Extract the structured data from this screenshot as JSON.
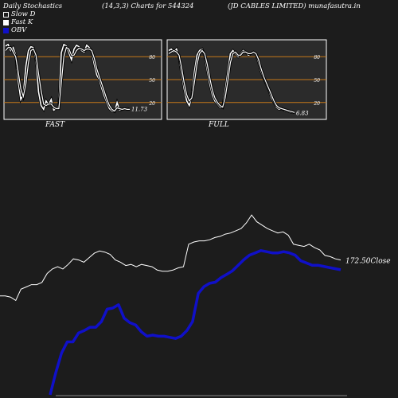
{
  "header": {
    "left": "Daily Stochastics",
    "center": "(14,3,3) Charts for 544324",
    "right": "(JD CABLES LIMITED) munafasutra.in"
  },
  "legend": [
    {
      "label": "Slow  D",
      "color": "#ffffff",
      "filled": false
    },
    {
      "label": "Fast K",
      "color": "#ffffff",
      "filled": true
    },
    {
      "label": "OBV",
      "color": "#1010c8",
      "filled": true
    }
  ],
  "colors": {
    "background": "#1c1c1c",
    "panel": "#2b2b2b",
    "gridline": "#c87a1a",
    "obv": "#1010c8",
    "price": "#ffffff"
  },
  "chart_data": [
    {
      "type": "line",
      "panel_label": "FAST",
      "last_value_label": "11.73",
      "ylim": [
        0,
        100
      ],
      "y_ticks": [
        20,
        50,
        80
      ],
      "series": [
        {
          "name": "Fast K",
          "values": [
            94,
            96,
            88,
            92,
            82,
            48,
            24,
            30,
            68,
            88,
            93,
            92,
            76,
            34,
            16,
            11,
            22,
            17,
            24,
            10,
            12,
            15,
            85,
            96,
            94,
            85,
            76,
            90,
            95,
            93,
            88,
            86,
            95,
            92,
            87,
            70,
            56,
            50,
            38,
            28,
            20,
            12,
            9,
            8,
            20,
            10,
            11,
            12,
            11,
            12
          ]
        },
        {
          "name": "Slow  D",
          "values": [
            88,
            92,
            92,
            86,
            80,
            60,
            38,
            28,
            44,
            72,
            88,
            90,
            82,
            58,
            36,
            18,
            16,
            18,
            18,
            14,
            12,
            12,
            45,
            80,
            92,
            90,
            82,
            82,
            88,
            91,
            90,
            88,
            90,
            90,
            88,
            78,
            64,
            54,
            44,
            34,
            24,
            16,
            11,
            9,
            13,
            12,
            11,
            12,
            11,
            11
          ]
        }
      ]
    },
    {
      "type": "line",
      "panel_label": "FULL",
      "last_value_label": "6.83",
      "ylim": [
        0,
        100
      ],
      "y_ticks": [
        20,
        50,
        80
      ],
      "series": [
        {
          "name": "Fast K",
          "values": [
            88,
            90,
            86,
            90,
            80,
            58,
            38,
            22,
            16,
            28,
            60,
            82,
            88,
            90,
            82,
            62,
            44,
            30,
            22,
            18,
            14,
            13,
            35,
            60,
            84,
            88,
            84,
            80,
            84,
            88,
            86,
            82,
            84,
            86,
            84,
            72,
            60,
            52,
            44,
            36,
            26,
            20,
            14,
            11,
            12,
            10,
            9,
            8,
            7,
            7
          ]
        },
        {
          "name": "Slow  D",
          "values": [
            84,
            86,
            88,
            86,
            82,
            66,
            46,
            30,
            22,
            26,
            46,
            70,
            84,
            88,
            84,
            70,
            52,
            36,
            26,
            20,
            16,
            14,
            26,
            48,
            72,
            84,
            86,
            82,
            82,
            86,
            86,
            84,
            84,
            86,
            84,
            76,
            64,
            54,
            46,
            38,
            30,
            22,
            16,
            13,
            12,
            11,
            10,
            9,
            8,
            7
          ]
        }
      ]
    },
    {
      "type": "line",
      "last_value_label": "172.50",
      "last_value_suffix": "Close",
      "series": [
        {
          "name": "Close",
          "values": [
            140,
            140,
            139,
            136,
            146,
            148,
            150,
            150,
            152,
            160,
            164,
            166,
            164,
            168,
            173,
            172,
            170,
            174,
            178,
            180,
            179,
            177,
            172,
            170,
            167,
            168,
            166,
            168,
            167,
            166,
            163,
            162,
            162,
            163,
            165,
            166,
            186,
            188,
            189,
            189,
            190,
            192,
            193,
            195,
            196,
            198,
            200,
            205,
            212,
            206,
            203,
            200,
            198,
            196,
            197,
            194,
            186,
            185,
            184,
            186,
            183,
            181,
            176,
            175,
            173,
            172
          ]
        },
        {
          "name": "OBV",
          "values": [
            0,
            20,
            37,
            47,
            47,
            55,
            57,
            60,
            60,
            65,
            76,
            77,
            80,
            68,
            64,
            62,
            56,
            52,
            53,
            52,
            52,
            51,
            50,
            52,
            57,
            65,
            90,
            96,
            99,
            100,
            104,
            107,
            110,
            115,
            120,
            124,
            126,
            128,
            127,
            126,
            126,
            127,
            126,
            124,
            119,
            117,
            115,
            115,
            114,
            113,
            112,
            111
          ]
        }
      ]
    }
  ]
}
